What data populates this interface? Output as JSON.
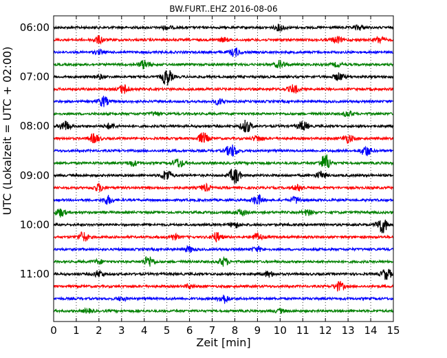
{
  "chart_data": {
    "type": "line",
    "title": "BW.FURT..EHZ 2016-08-06",
    "xlabel": "Zeit  [min]",
    "ylabel": "UTC (Lokalzeit = UTC + 02:00)",
    "xlim": [
      0,
      15
    ],
    "x_ticks": [
      "0",
      "1",
      "2",
      "3",
      "4",
      "5",
      "6",
      "7",
      "8",
      "9",
      "10",
      "11",
      "12",
      "13",
      "14",
      "15"
    ],
    "y_tick_labels": [
      "06:00",
      "07:00",
      "08:00",
      "09:00",
      "10:00",
      "11:00"
    ],
    "grid": "vertical dotted",
    "colors": [
      "#000000",
      "#ff0000",
      "#0000ff",
      "#008000"
    ],
    "traces": [
      {
        "start": "06:00",
        "color": "#000000",
        "bursts": [
          [
            10,
            0.35
          ],
          [
            13.5,
            0.25
          ],
          [
            5,
            0.2
          ]
        ]
      },
      {
        "start": "06:15",
        "color": "#ff0000",
        "bursts": [
          [
            2,
            0.4
          ],
          [
            12.5,
            0.35
          ],
          [
            14.4,
            0.35
          ],
          [
            7.5,
            0.2
          ]
        ]
      },
      {
        "start": "06:30",
        "color": "#0000ff",
        "bursts": [
          [
            8,
            0.45
          ],
          [
            2,
            0.2
          ]
        ]
      },
      {
        "start": "06:45",
        "color": "#008000",
        "bursts": [
          [
            4,
            0.45
          ],
          [
            10,
            0.4
          ],
          [
            12.5,
            0.2
          ]
        ]
      },
      {
        "start": "07:00",
        "color": "#000000",
        "bursts": [
          [
            5,
            0.9
          ],
          [
            12.6,
            0.4
          ],
          [
            2,
            0.2
          ]
        ]
      },
      {
        "start": "07:15",
        "color": "#ff0000",
        "bursts": [
          [
            3.1,
            0.5
          ],
          [
            10.6,
            0.45
          ]
        ]
      },
      {
        "start": "07:30",
        "color": "#0000ff",
        "bursts": [
          [
            2.2,
            0.55
          ],
          [
            7.3,
            0.3
          ]
        ]
      },
      {
        "start": "07:45",
        "color": "#008000",
        "bursts": [
          [
            13,
            0.3
          ],
          [
            4.5,
            0.2
          ]
        ]
      },
      {
        "start": "08:00",
        "color": "#000000",
        "bursts": [
          [
            0.5,
            0.55
          ],
          [
            8.5,
            0.7
          ],
          [
            11,
            0.5
          ],
          [
            2.5,
            0.3
          ]
        ]
      },
      {
        "start": "08:15",
        "color": "#ff0000",
        "bursts": [
          [
            1.8,
            0.5
          ],
          [
            6.6,
            0.6
          ],
          [
            13,
            0.45
          ],
          [
            9,
            0.3
          ]
        ]
      },
      {
        "start": "08:30",
        "color": "#0000ff",
        "bursts": [
          [
            7.8,
            0.5
          ],
          [
            13.8,
            0.55
          ],
          [
            8,
            0.25
          ]
        ]
      },
      {
        "start": "08:45",
        "color": "#008000",
        "bursts": [
          [
            5.5,
            0.5
          ],
          [
            12,
            0.95
          ],
          [
            3.5,
            0.3
          ]
        ]
      },
      {
        "start": "09:00",
        "color": "#000000",
        "bursts": [
          [
            8,
            1.0
          ],
          [
            5,
            0.6
          ],
          [
            11.8,
            0.4
          ]
        ]
      },
      {
        "start": "09:15",
        "color": "#ff0000",
        "bursts": [
          [
            2,
            0.4
          ],
          [
            6.7,
            0.35
          ],
          [
            10.8,
            0.3
          ]
        ]
      },
      {
        "start": "09:30",
        "color": "#0000ff",
        "bursts": [
          [
            2.4,
            0.45
          ],
          [
            9,
            0.55
          ],
          [
            10.7,
            0.35
          ]
        ]
      },
      {
        "start": "09:45",
        "color": "#008000",
        "bursts": [
          [
            0.3,
            0.45
          ],
          [
            8.3,
            0.35
          ],
          [
            11.2,
            0.3
          ]
        ]
      },
      {
        "start": "10:00",
        "color": "#000000",
        "bursts": [
          [
            14.5,
            1.0
          ],
          [
            8,
            0.3
          ]
        ]
      },
      {
        "start": "10:15",
        "color": "#ff0000",
        "bursts": [
          [
            1.3,
            0.55
          ],
          [
            7.2,
            0.5
          ],
          [
            9,
            0.4
          ],
          [
            5.3,
            0.3
          ]
        ]
      },
      {
        "start": "10:30",
        "color": "#0000ff",
        "bursts": [
          [
            6,
            0.3
          ],
          [
            9,
            0.25
          ]
        ]
      },
      {
        "start": "10:45",
        "color": "#008000",
        "bursts": [
          [
            4.2,
            0.6
          ],
          [
            7.5,
            0.45
          ],
          [
            2,
            0.2
          ]
        ]
      },
      {
        "start": "11:00",
        "color": "#000000",
        "bursts": [
          [
            14.7,
            0.6
          ],
          [
            2,
            0.35
          ],
          [
            9.5,
            0.3
          ]
        ]
      },
      {
        "start": "11:15",
        "color": "#ff0000",
        "bursts": [
          [
            12.6,
            0.5
          ],
          [
            6,
            0.2
          ]
        ]
      },
      {
        "start": "11:30",
        "color": "#0000ff",
        "bursts": [
          [
            7.5,
            0.5
          ],
          [
            3,
            0.2
          ]
        ]
      },
      {
        "start": "11:45",
        "color": "#008000",
        "bursts": [
          [
            1.5,
            0.2
          ],
          [
            10,
            0.2
          ]
        ]
      }
    ]
  }
}
